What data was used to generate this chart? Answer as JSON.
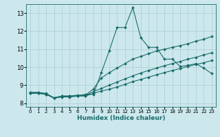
{
  "xlabel": "Humidex (Indice chaleur)",
  "bg_color": "#cce8ec",
  "grid_color": "#aaccd4",
  "line_color": "#1a6b6b",
  "xlim": [
    -0.5,
    23.5
  ],
  "ylim": [
    7.8,
    13.5
  ],
  "xticks": [
    0,
    1,
    2,
    3,
    4,
    5,
    6,
    7,
    8,
    9,
    10,
    11,
    12,
    13,
    14,
    15,
    16,
    17,
    18,
    19,
    20,
    21,
    22,
    23
  ],
  "yticks": [
    8,
    9,
    10,
    11,
    12,
    13
  ],
  "line1_x": [
    0,
    1,
    2,
    3,
    4,
    5,
    6,
    7,
    8,
    9,
    10,
    11,
    12,
    13,
    14,
    15,
    16,
    17,
    18,
    19,
    20,
    21,
    22,
    23
  ],
  "line1_y": [
    8.6,
    8.6,
    8.5,
    8.3,
    8.4,
    8.4,
    8.4,
    8.5,
    8.5,
    9.7,
    10.9,
    12.2,
    12.2,
    13.3,
    11.65,
    11.1,
    11.1,
    10.45,
    10.45,
    10.05,
    10.1,
    10.2,
    9.95,
    9.65
  ],
  "line2_x": [
    0,
    1,
    2,
    3,
    4,
    5,
    6,
    7,
    8,
    9,
    10,
    11,
    12,
    13,
    14,
    15,
    16,
    17,
    18,
    19,
    20,
    21,
    22,
    23
  ],
  "line2_y": [
    8.6,
    8.6,
    8.55,
    8.3,
    8.4,
    8.4,
    8.45,
    8.45,
    8.8,
    9.4,
    9.7,
    9.95,
    10.2,
    10.45,
    10.6,
    10.75,
    10.9,
    11.0,
    11.1,
    11.2,
    11.3,
    11.45,
    11.55,
    11.7
  ],
  "line3_x": [
    0,
    1,
    2,
    3,
    4,
    5,
    6,
    7,
    8,
    9,
    10,
    11,
    12,
    13,
    14,
    15,
    16,
    17,
    18,
    19,
    20,
    21,
    22,
    23
  ],
  "line3_y": [
    8.55,
    8.55,
    8.5,
    8.3,
    8.38,
    8.38,
    8.42,
    8.42,
    8.65,
    8.82,
    9.0,
    9.18,
    9.35,
    9.52,
    9.68,
    9.82,
    9.95,
    10.08,
    10.2,
    10.32,
    10.45,
    10.55,
    10.68,
    10.8
  ],
  "line4_x": [
    0,
    1,
    2,
    3,
    4,
    5,
    6,
    7,
    8,
    9,
    10,
    11,
    12,
    13,
    14,
    15,
    16,
    17,
    18,
    19,
    20,
    21,
    22,
    23
  ],
  "line4_y": [
    8.55,
    8.55,
    8.5,
    8.28,
    8.35,
    8.35,
    8.4,
    8.4,
    8.55,
    8.68,
    8.78,
    8.9,
    9.05,
    9.2,
    9.32,
    9.45,
    9.58,
    9.7,
    9.82,
    9.92,
    10.05,
    10.15,
    10.25,
    10.37
  ],
  "marker": "D",
  "markersize": 2.0,
  "linewidth": 0.8
}
